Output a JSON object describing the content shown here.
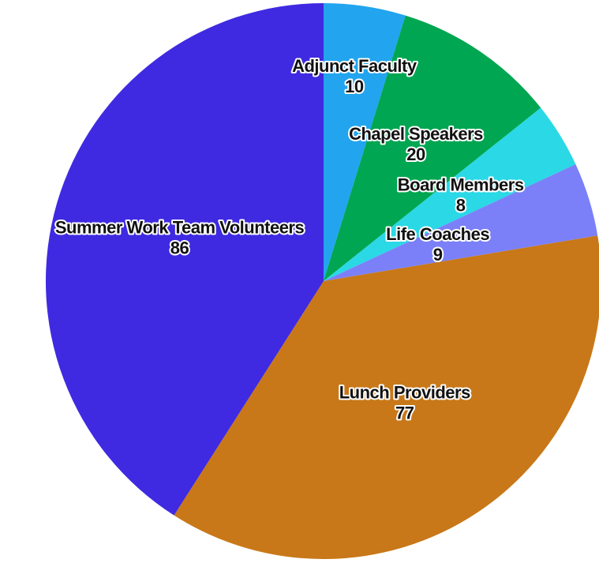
{
  "chart_data": {
    "type": "pie",
    "categories": [
      "Adjunct Faculty",
      "Chapel Speakers",
      "Board Members",
      "Life Coaches",
      "Lunch Providers",
      "Summer Work Team Volunteers"
    ],
    "values": [
      10,
      20,
      8,
      9,
      77,
      86
    ],
    "colors": [
      "#22a5ee",
      "#00a651",
      "#2ad8e6",
      "#7b80f8",
      "#c87818",
      "#3f2ae1"
    ]
  }
}
